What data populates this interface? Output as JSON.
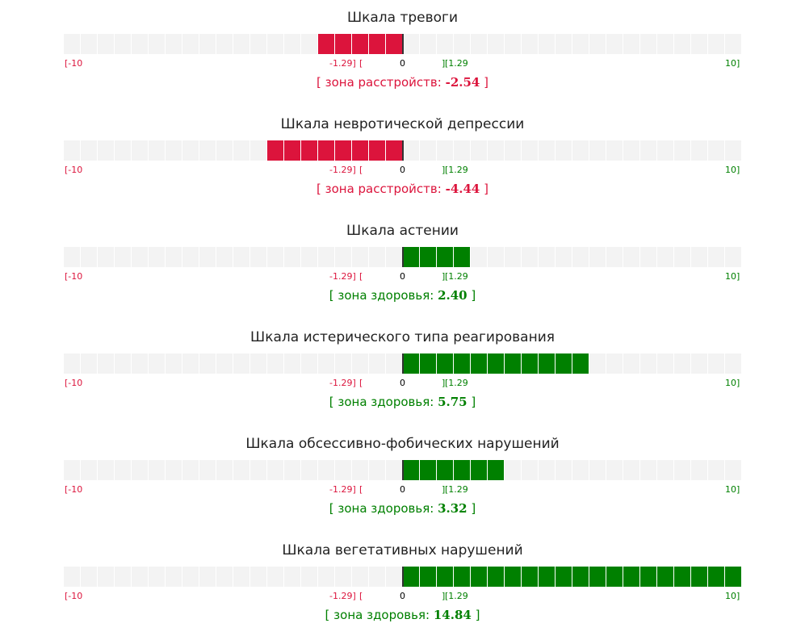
{
  "colors": {
    "negative": "#dc143c",
    "positive": "#008000",
    "empty": "#f3f3f3",
    "zero_line": "#333333",
    "title": "#222222"
  },
  "chart_data": [
    {
      "type": "bar",
      "title": "Шкала тревоги",
      "value": -2.54,
      "zone_label": "[ зона расстройств: ",
      "value_label": "-2.54",
      "zone_close": " ]",
      "zone": "negative",
      "xlim": [
        -10,
        10
      ],
      "thresholds": [
        -1.29,
        1.29
      ],
      "ticks": {
        "min": "[-10",
        "neg_threshold": "-1.29]",
        "neg_bracket": "[",
        "zero": "0",
        "pos_bracket": "]",
        "pos_threshold": "[1.29",
        "max": "10]"
      }
    },
    {
      "type": "bar",
      "title": "Шкала невротической депрессии",
      "value": -4.44,
      "zone_label": "[ зона расстройств: ",
      "value_label": "-4.44",
      "zone_close": " ]",
      "zone": "negative",
      "xlim": [
        -10,
        10
      ],
      "thresholds": [
        -1.29,
        1.29
      ],
      "ticks": {
        "min": "[-10",
        "neg_threshold": "-1.29]",
        "neg_bracket": "[",
        "zero": "0",
        "pos_bracket": "]",
        "pos_threshold": "[1.29",
        "max": "10]"
      }
    },
    {
      "type": "bar",
      "title": "Шкала астении",
      "value": 2.4,
      "zone_label": "[ зона здоровья: ",
      "value_label": "2.40",
      "zone_close": " ]",
      "zone": "positive",
      "xlim": [
        -10,
        10
      ],
      "thresholds": [
        -1.29,
        1.29
      ],
      "ticks": {
        "min": "[-10",
        "neg_threshold": "-1.29]",
        "neg_bracket": "[",
        "zero": "0",
        "pos_bracket": "]",
        "pos_threshold": "[1.29",
        "max": "10]"
      }
    },
    {
      "type": "bar",
      "title": "Шкала истерического типа реагирования",
      "value": 5.75,
      "zone_label": "[ зона здоровья: ",
      "value_label": "5.75",
      "zone_close": " ]",
      "zone": "positive",
      "xlim": [
        -10,
        10
      ],
      "thresholds": [
        -1.29,
        1.29
      ],
      "ticks": {
        "min": "[-10",
        "neg_threshold": "-1.29]",
        "neg_bracket": "[",
        "zero": "0",
        "pos_bracket": "]",
        "pos_threshold": "[1.29",
        "max": "10]"
      }
    },
    {
      "type": "bar",
      "title": "Шкала обсессивно-фобических нарушений",
      "value": 3.32,
      "zone_label": "[ зона здоровья: ",
      "value_label": "3.32",
      "zone_close": " ]",
      "zone": "positive",
      "xlim": [
        -10,
        10
      ],
      "thresholds": [
        -1.29,
        1.29
      ],
      "ticks": {
        "min": "[-10",
        "neg_threshold": "-1.29]",
        "neg_bracket": "[",
        "zero": "0",
        "pos_bracket": "]",
        "pos_threshold": "[1.29",
        "max": "10]"
      }
    },
    {
      "type": "bar",
      "title": "Шкала вегетативных нарушений",
      "value": 14.84,
      "zone_label": "[ зона здоровья: ",
      "value_label": "14.84",
      "zone_close": " ]",
      "zone": "positive",
      "xlim": [
        -10,
        10
      ],
      "thresholds": [
        -1.29,
        1.29
      ],
      "ticks": {
        "min": "[-10",
        "neg_threshold": "-1.29]",
        "neg_bracket": "[",
        "zero": "0",
        "pos_bracket": "]",
        "pos_threshold": "[1.29",
        "max": "10]"
      }
    }
  ]
}
